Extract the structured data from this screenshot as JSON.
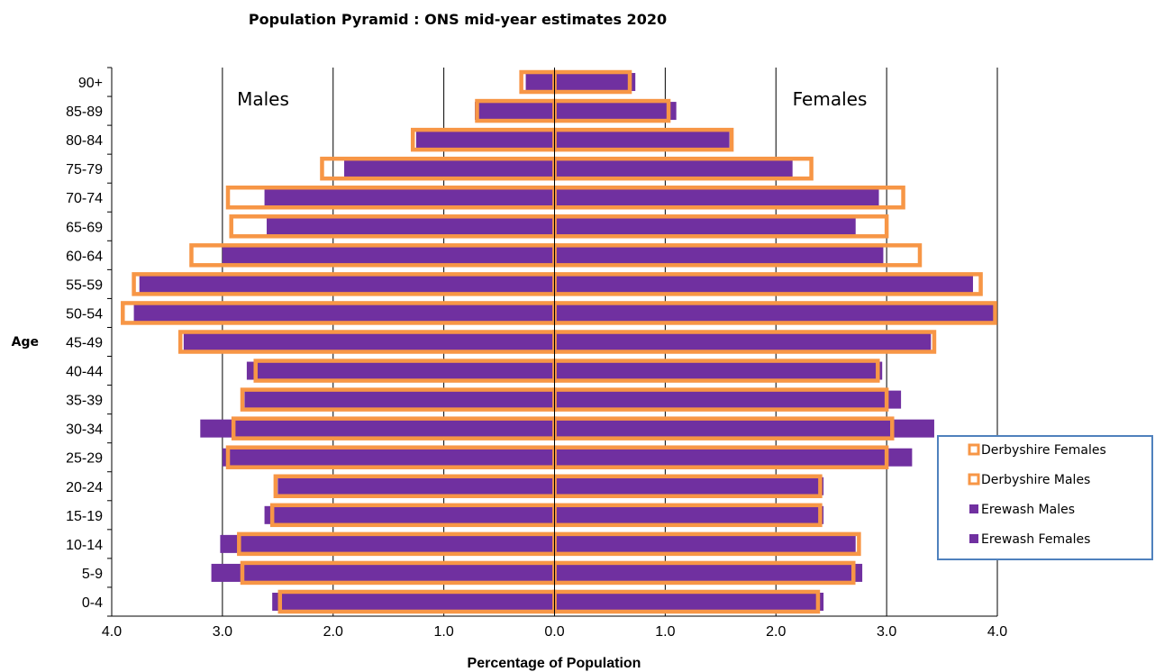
{
  "chart_data": {
    "type": "bar",
    "orientation": "horizontal-pyramid",
    "title": "Population Pyramid :  ONS mid-year estimates 2020",
    "xlabel": "Percentage of Population",
    "ylabel": "Age",
    "left_label": "Males",
    "right_label": "Females",
    "xlim": [
      -4.0,
      4.0
    ],
    "x_ticks": [
      -4.0,
      -3.0,
      -2.0,
      -1.0,
      0.0,
      1.0,
      2.0,
      3.0,
      4.0
    ],
    "x_tick_labels": [
      "4.0",
      "3.0",
      "2.0",
      "1.0",
      "0.0",
      "1.0",
      "2.0",
      "3.0",
      "4.0"
    ],
    "grid": true,
    "legend_position": "right",
    "categories": [
      "0-4",
      "5-9",
      "10-14",
      "15-19",
      "20-24",
      "25-29",
      "30-34",
      "35-39",
      "40-44",
      "45-49",
      "50-54",
      "55-59",
      "60-64",
      "65-69",
      "70-74",
      "75-79",
      "80-84",
      "85-89",
      "90+"
    ],
    "series": [
      {
        "name": "Derbyshire Females",
        "style": "outline",
        "color": "#F79646",
        "values": [
          2.38,
          2.7,
          2.75,
          2.4,
          2.4,
          3.0,
          3.05,
          3.0,
          2.92,
          3.43,
          3.98,
          3.85,
          3.3,
          3.0,
          3.15,
          2.32,
          1.6,
          1.03,
          0.68
        ]
      },
      {
        "name": "Derbyshire Males",
        "style": "outline",
        "color": "#F79646",
        "values": [
          2.48,
          2.82,
          2.85,
          2.55,
          2.52,
          2.95,
          2.9,
          2.82,
          2.7,
          3.38,
          3.9,
          3.8,
          3.28,
          2.92,
          2.95,
          2.1,
          1.28,
          0.7,
          0.3
        ]
      },
      {
        "name": "Erewash Males",
        "style": "fill",
        "color": "#7030A0",
        "values": [
          2.55,
          3.1,
          3.02,
          2.62,
          2.5,
          3.0,
          3.2,
          2.8,
          2.78,
          3.35,
          3.8,
          3.75,
          3.0,
          2.6,
          2.62,
          1.9,
          1.25,
          0.72,
          0.26
        ]
      },
      {
        "name": "Erewash Females",
        "style": "fill",
        "color": "#7030A0",
        "values": [
          2.43,
          2.78,
          2.72,
          2.43,
          2.43,
          3.23,
          3.43,
          3.13,
          2.96,
          3.4,
          3.98,
          3.78,
          2.97,
          2.72,
          2.93,
          2.15,
          1.58,
          1.1,
          0.73
        ]
      }
    ]
  }
}
